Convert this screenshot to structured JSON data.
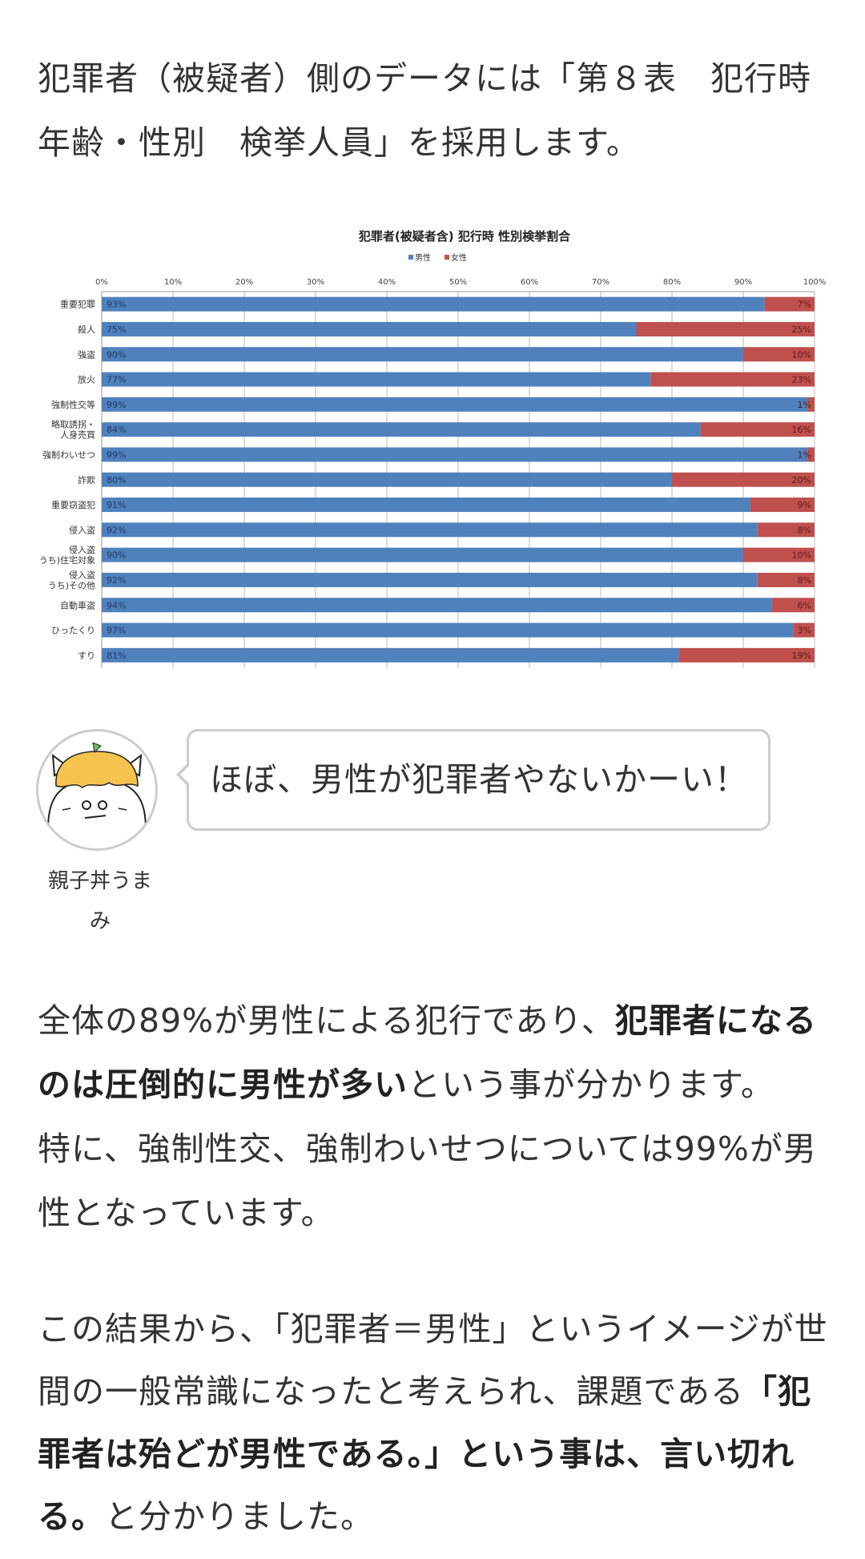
{
  "intro": {
    "text": "犯罪者（被疑者）側のデータには「第８表　犯行時年齢・性別　検挙人員」を採用します。"
  },
  "chart_data": {
    "type": "bar",
    "stacked": true,
    "orientation": "horizontal",
    "title": "犯罪者(被疑者含) 犯行時 性別検挙割合",
    "legend": [
      "男性",
      "女性"
    ],
    "legend_position": "top-center",
    "xlim": [
      0,
      100
    ],
    "x_ticks": [
      "0%",
      "10%",
      "20%",
      "30%",
      "40%",
      "50%",
      "60%",
      "70%",
      "80%",
      "90%",
      "100%"
    ],
    "categories": [
      "重要犯罪",
      "殺人",
      "強盗",
      "放火",
      "強制性交等",
      "略取誘拐・人身売買",
      "強制わいせつ",
      "詐欺",
      "重要窃盗犯",
      "侵入盗",
      "侵入盗 うち)住宅対象",
      "侵入盗 うち)その他",
      "自動車盗",
      "ひったくり",
      "すり"
    ],
    "category_lines": [
      [
        "重要犯罪"
      ],
      [
        "殺人"
      ],
      [
        "強盗"
      ],
      [
        "放火"
      ],
      [
        "強制性交等"
      ],
      [
        "略取誘拐・",
        "人身売買"
      ],
      [
        "強制わいせつ"
      ],
      [
        "詐欺"
      ],
      [
        "重要窃盗犯"
      ],
      [
        "侵入盗"
      ],
      [
        "侵入盗",
        "うち)住宅対象"
      ],
      [
        "侵入盗",
        "うち)その他"
      ],
      [
        "自動車盗"
      ],
      [
        "ひったくり"
      ],
      [
        "すり"
      ]
    ],
    "series": [
      {
        "name": "男性",
        "color": "#4f81bd",
        "values": [
          93,
          75,
          90,
          77,
          99,
          84,
          99,
          80,
          91,
          92,
          90,
          92,
          94,
          97,
          81
        ]
      },
      {
        "name": "女性",
        "color": "#c0504d",
        "values": [
          7,
          25,
          10,
          23,
          1,
          16,
          1,
          20,
          9,
          8,
          10,
          8,
          6,
          3,
          19
        ]
      }
    ]
  },
  "comment": {
    "avatar_name": "親子丼うまみ",
    "avatar_name_lines": [
      "親子丼うま",
      "み"
    ],
    "text": "ほぼ、男性が犯罪者やないかーい！"
  },
  "para2": {
    "s1": "全体の89%が男性による犯行であり、",
    "s1_bold": "犯罪者になるのは圧倒的に男性が多い",
    "s2": "という事が分かります。",
    "s3": "特に、強制性交、強制わいせつについては99%が男性となっています。"
  },
  "para3": {
    "s1": "この結果から、「犯罪者＝男性」というイメージが世間の一般常識になったと考えられ、課題である",
    "s1_bold": "「犯罪者は殆どが男性である。」という事は、言い切れる。",
    "s2": "と分かりました。"
  }
}
